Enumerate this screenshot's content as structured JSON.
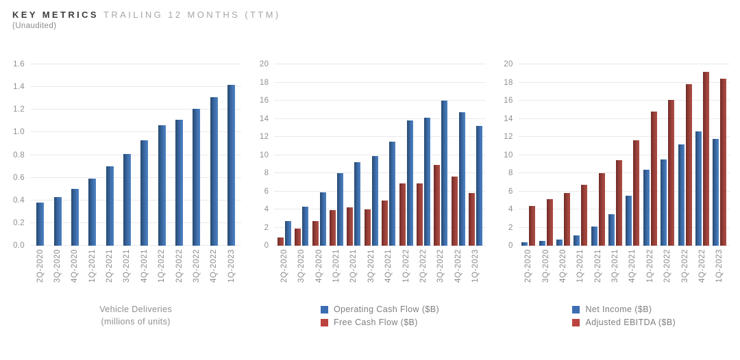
{
  "header": {
    "title_primary": "KEY METRICS",
    "title_secondary": "TRAILING 12 MONTHS (TTM)",
    "subtitle": "(Unaudited)"
  },
  "colors": {
    "blue_dark": "#27496f",
    "blue_mid": "#3c6ba8",
    "blue_light": "#4e83c2",
    "red_dark": "#6e2b27",
    "red_mid": "#9c403a",
    "red_light": "#a94e45",
    "legend_blue": "#3c6db3",
    "legend_red": "#bc433e"
  },
  "chart_data": [
    {
      "type": "bar",
      "id": "vehicle-deliveries",
      "categories": [
        "2Q-2020",
        "3Q-2020",
        "4Q-2020",
        "1Q-2021",
        "2Q-2021",
        "3Q-2021",
        "4Q-2021",
        "1Q-2022",
        "2Q-2022",
        "3Q-2022",
        "4Q-2022",
        "1Q-2023"
      ],
      "series": [
        {
          "name": "Vehicle Deliveries",
          "color": "blue",
          "values": [
            0.38,
            0.43,
            0.5,
            0.59,
            0.7,
            0.81,
            0.93,
            1.06,
            1.11,
            1.21,
            1.31,
            1.42
          ]
        }
      ],
      "ylim": [
        0,
        1.6
      ],
      "yticks": [
        "0.0",
        "0.2",
        "0.4",
        "0.6",
        "0.8",
        "1.0",
        "1.2",
        "1.4",
        "1.6"
      ],
      "grid": true,
      "legend": null,
      "footer_lines": [
        "Vehicle Deliveries",
        "(millions of units)"
      ]
    },
    {
      "type": "bar",
      "id": "cash-flow",
      "categories": [
        "2Q-2020",
        "3Q-2020",
        "4Q-2020",
        "1Q-2021",
        "2Q-2021",
        "3Q-2021",
        "4Q-2021",
        "1Q-2022",
        "2Q-2022",
        "3Q-2022",
        "4Q-2022",
        "1Q-2023"
      ],
      "series": [
        {
          "name": "Free Cash Flow ($B)",
          "color": "red",
          "values": [
            0.9,
            1.9,
            2.7,
            3.9,
            4.2,
            4.0,
            5.0,
            6.9,
            6.9,
            8.9,
            7.6,
            5.8
          ]
        },
        {
          "name": "Operating Cash Flow ($B)",
          "color": "blue",
          "values": [
            2.7,
            4.3,
            5.9,
            8.0,
            9.2,
            9.9,
            11.5,
            13.8,
            14.1,
            16.0,
            14.7,
            13.2
          ]
        }
      ],
      "ylim": [
        0,
        20
      ],
      "yticks": [
        "0",
        "2",
        "4",
        "6",
        "8",
        "10",
        "12",
        "14",
        "16",
        "18",
        "20"
      ],
      "grid": true,
      "legend": [
        {
          "label": "Operating Cash Flow ($B)",
          "color": "blue"
        },
        {
          "label": "Free Cash Flow ($B)",
          "color": "red"
        }
      ],
      "footer_lines": null
    },
    {
      "type": "bar",
      "id": "income-ebitda",
      "categories": [
        "2Q-2020",
        "3Q-2020",
        "4Q-2020",
        "1Q-2021",
        "2Q-2021",
        "3Q-2021",
        "4Q-2021",
        "1Q-2022",
        "2Q-2022",
        "3Q-2022",
        "4Q-2022",
        "1Q-2023"
      ],
      "series": [
        {
          "name": "Net Income ($B)",
          "color": "blue",
          "values": [
            0.35,
            0.55,
            0.7,
            1.1,
            2.1,
            3.5,
            5.5,
            8.4,
            9.5,
            11.2,
            12.6,
            11.8
          ]
        },
        {
          "name": "Adjusted EBITDA ($B)",
          "color": "red",
          "values": [
            4.4,
            5.1,
            5.8,
            6.7,
            8.0,
            9.4,
            11.6,
            14.8,
            16.1,
            17.8,
            19.2,
            18.4
          ]
        }
      ],
      "ylim": [
        0,
        20
      ],
      "yticks": [
        "0",
        "2",
        "4",
        "6",
        "8",
        "10",
        "12",
        "14",
        "16",
        "18",
        "20"
      ],
      "grid": true,
      "legend": [
        {
          "label": "Net Income ($B)",
          "color": "blue"
        },
        {
          "label": "Adjusted EBITDA ($B)",
          "color": "red"
        }
      ],
      "footer_lines": null
    }
  ]
}
